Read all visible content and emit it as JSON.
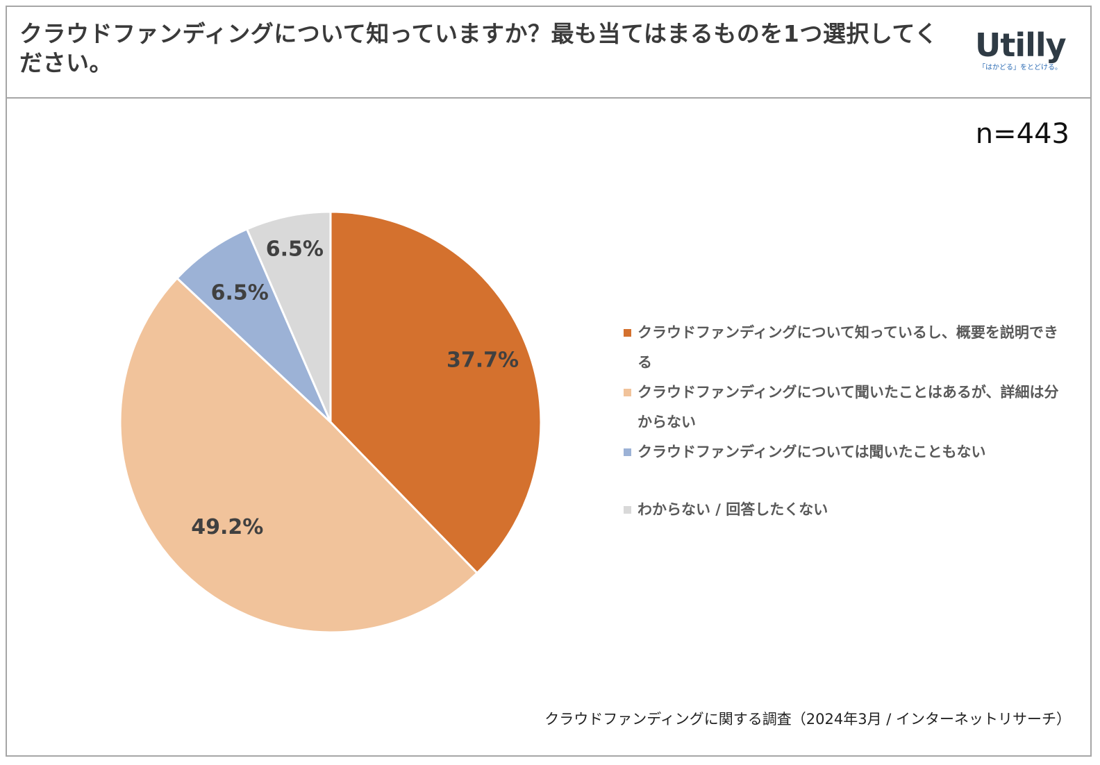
{
  "header": {
    "title": "クラウドファンディングについて知っていますか？最も当てはまるものを1つ選択してください。",
    "logo": {
      "word": "Utilly",
      "tagline": "「はかどる」をとどける。"
    }
  },
  "sample_size": "n=443",
  "source": "クラウドファンディングに関する調査（2024年3月 / インターネットリサーチ）",
  "colors": {
    "knows_and_can_explain": "#d4712e",
    "heard_but_unclear": "#f1c39b",
    "never_heard": "#9cb2d6",
    "no_answer": "#d9d9d9",
    "slice_border": "#ffffff"
  },
  "chart_data": {
    "type": "pie",
    "title": "クラウドファンディングについて知っていますか？最も当てはまるものを1つ選択してください。",
    "start_angle_deg": 0,
    "direction": "clockwise",
    "slices": [
      {
        "label": "クラウドファンディングについて知っているし、概要を説明できる",
        "value": 37.7,
        "display": "37.7%",
        "color": "#d4712e"
      },
      {
        "label": "クラウドファンディングについて聞いたことはあるが、詳細は分からない",
        "value": 49.2,
        "display": "49.2%",
        "color": "#f1c39b"
      },
      {
        "label": "クラウドファンディングについては聞いたこともない",
        "value": 6.5,
        "display": "6.5%",
        "color": "#9cb2d6"
      },
      {
        "label": "わからない / 回答したくない",
        "value": 6.5,
        "display": "6.5%",
        "color": "#d9d9d9"
      }
    ],
    "legend_position": "right"
  }
}
